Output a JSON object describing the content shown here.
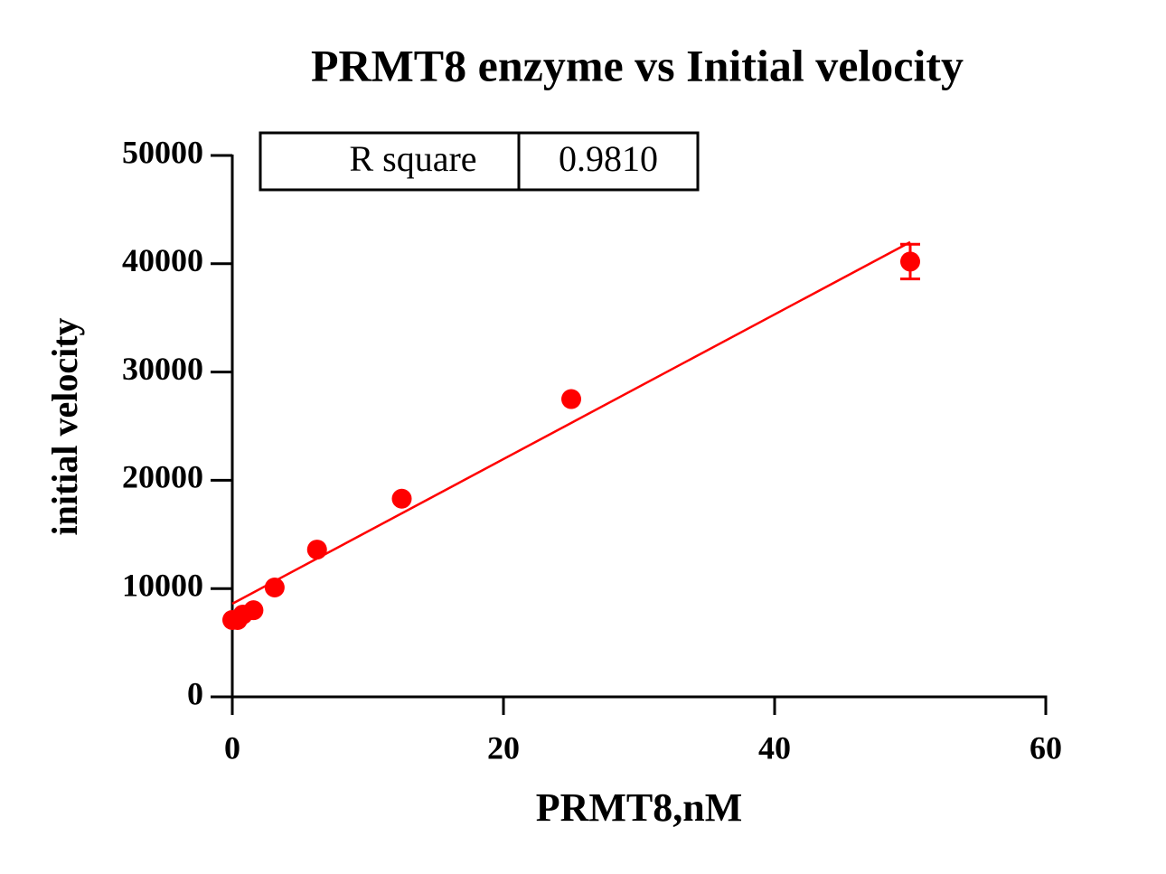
{
  "chart_data": {
    "type": "scatter",
    "title": "PRMT8 enzyme vs Initial velocity",
    "x_label": "PRMT8,nM",
    "y_label": "initial velocity",
    "x": [
      0,
      0.39,
      0.78,
      1.56,
      3.125,
      6.25,
      12.5,
      25,
      50
    ],
    "values": [
      7100,
      7100,
      7600,
      8000,
      10100,
      13600,
      18300,
      27500,
      40200
    ],
    "errors": [
      null,
      null,
      null,
      null,
      null,
      null,
      null,
      null,
      1600
    ],
    "color": "#ff0000",
    "fit_line": {
      "x": [
        0,
        50
      ],
      "values": [
        8600,
        42000
      ],
      "color": "#ff0000"
    },
    "stats_table": {
      "label": "R square",
      "value": "0.9810"
    },
    "xlim": [
      0,
      60
    ],
    "xticks": [
      0,
      20,
      40,
      60
    ],
    "ylim": [
      0,
      50000
    ],
    "yticks": [
      0,
      10000,
      20000,
      30000,
      40000,
      50000
    ]
  }
}
